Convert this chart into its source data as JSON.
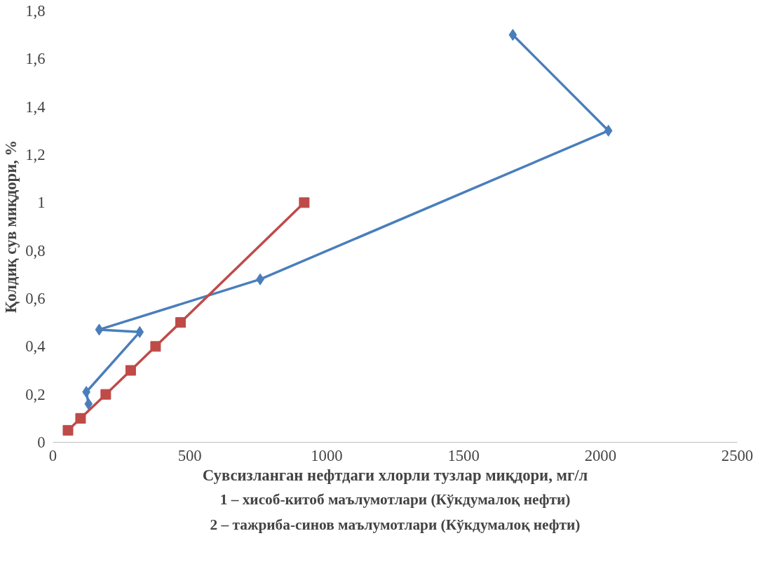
{
  "chart_data": {
    "type": "line",
    "xlabel": "Сувсизланган нефтдаги хлорли тузлар миқдори, мг/л",
    "ylabel": "Қолдиқ сув миқдори, %",
    "xlim": [
      0,
      2500
    ],
    "ylim": [
      0,
      1.8
    ],
    "xticks": [
      0,
      500,
      1000,
      1500,
      2000,
      2500
    ],
    "yticks": [
      0,
      {
        "value": 0.2,
        "label": "0,2"
      },
      {
        "value": 0.4,
        "label": "0,4"
      },
      {
        "value": 0.6,
        "label": "0,6"
      },
      {
        "value": 0.8,
        "label": "0,8"
      },
      1,
      {
        "value": 1.2,
        "label": "1,2"
      },
      {
        "value": 1.4,
        "label": "1,4"
      },
      {
        "value": 1.6,
        "label": "1,6"
      },
      {
        "value": 1.8,
        "label": "1,8"
      }
    ],
    "series": [
      {
        "color": "#4a7ebb",
        "marker": "diamond",
        "x": [
          1680,
          2029,
          757,
          169,
          317,
          122,
          130
        ],
        "values": [
          1.7,
          1.3,
          0.68,
          0.47,
          0.46,
          0.21,
          0.16
        ]
      },
      {
        "color": "#be4b48",
        "marker": "square",
        "x": [
          55,
          101,
          193,
          284,
          375,
          466,
          918
        ],
        "values": [
          0.05,
          0.1,
          0.2,
          0.3,
          0.4,
          0.5,
          1.0
        ]
      }
    ],
    "annotations": [
      "1 – хисоб-китоб маълумотлари (Кўкдумалоқ нефти)",
      "2 – тажриба-синов маълумотлари (Кўкдумалоқ нефти)"
    ]
  }
}
